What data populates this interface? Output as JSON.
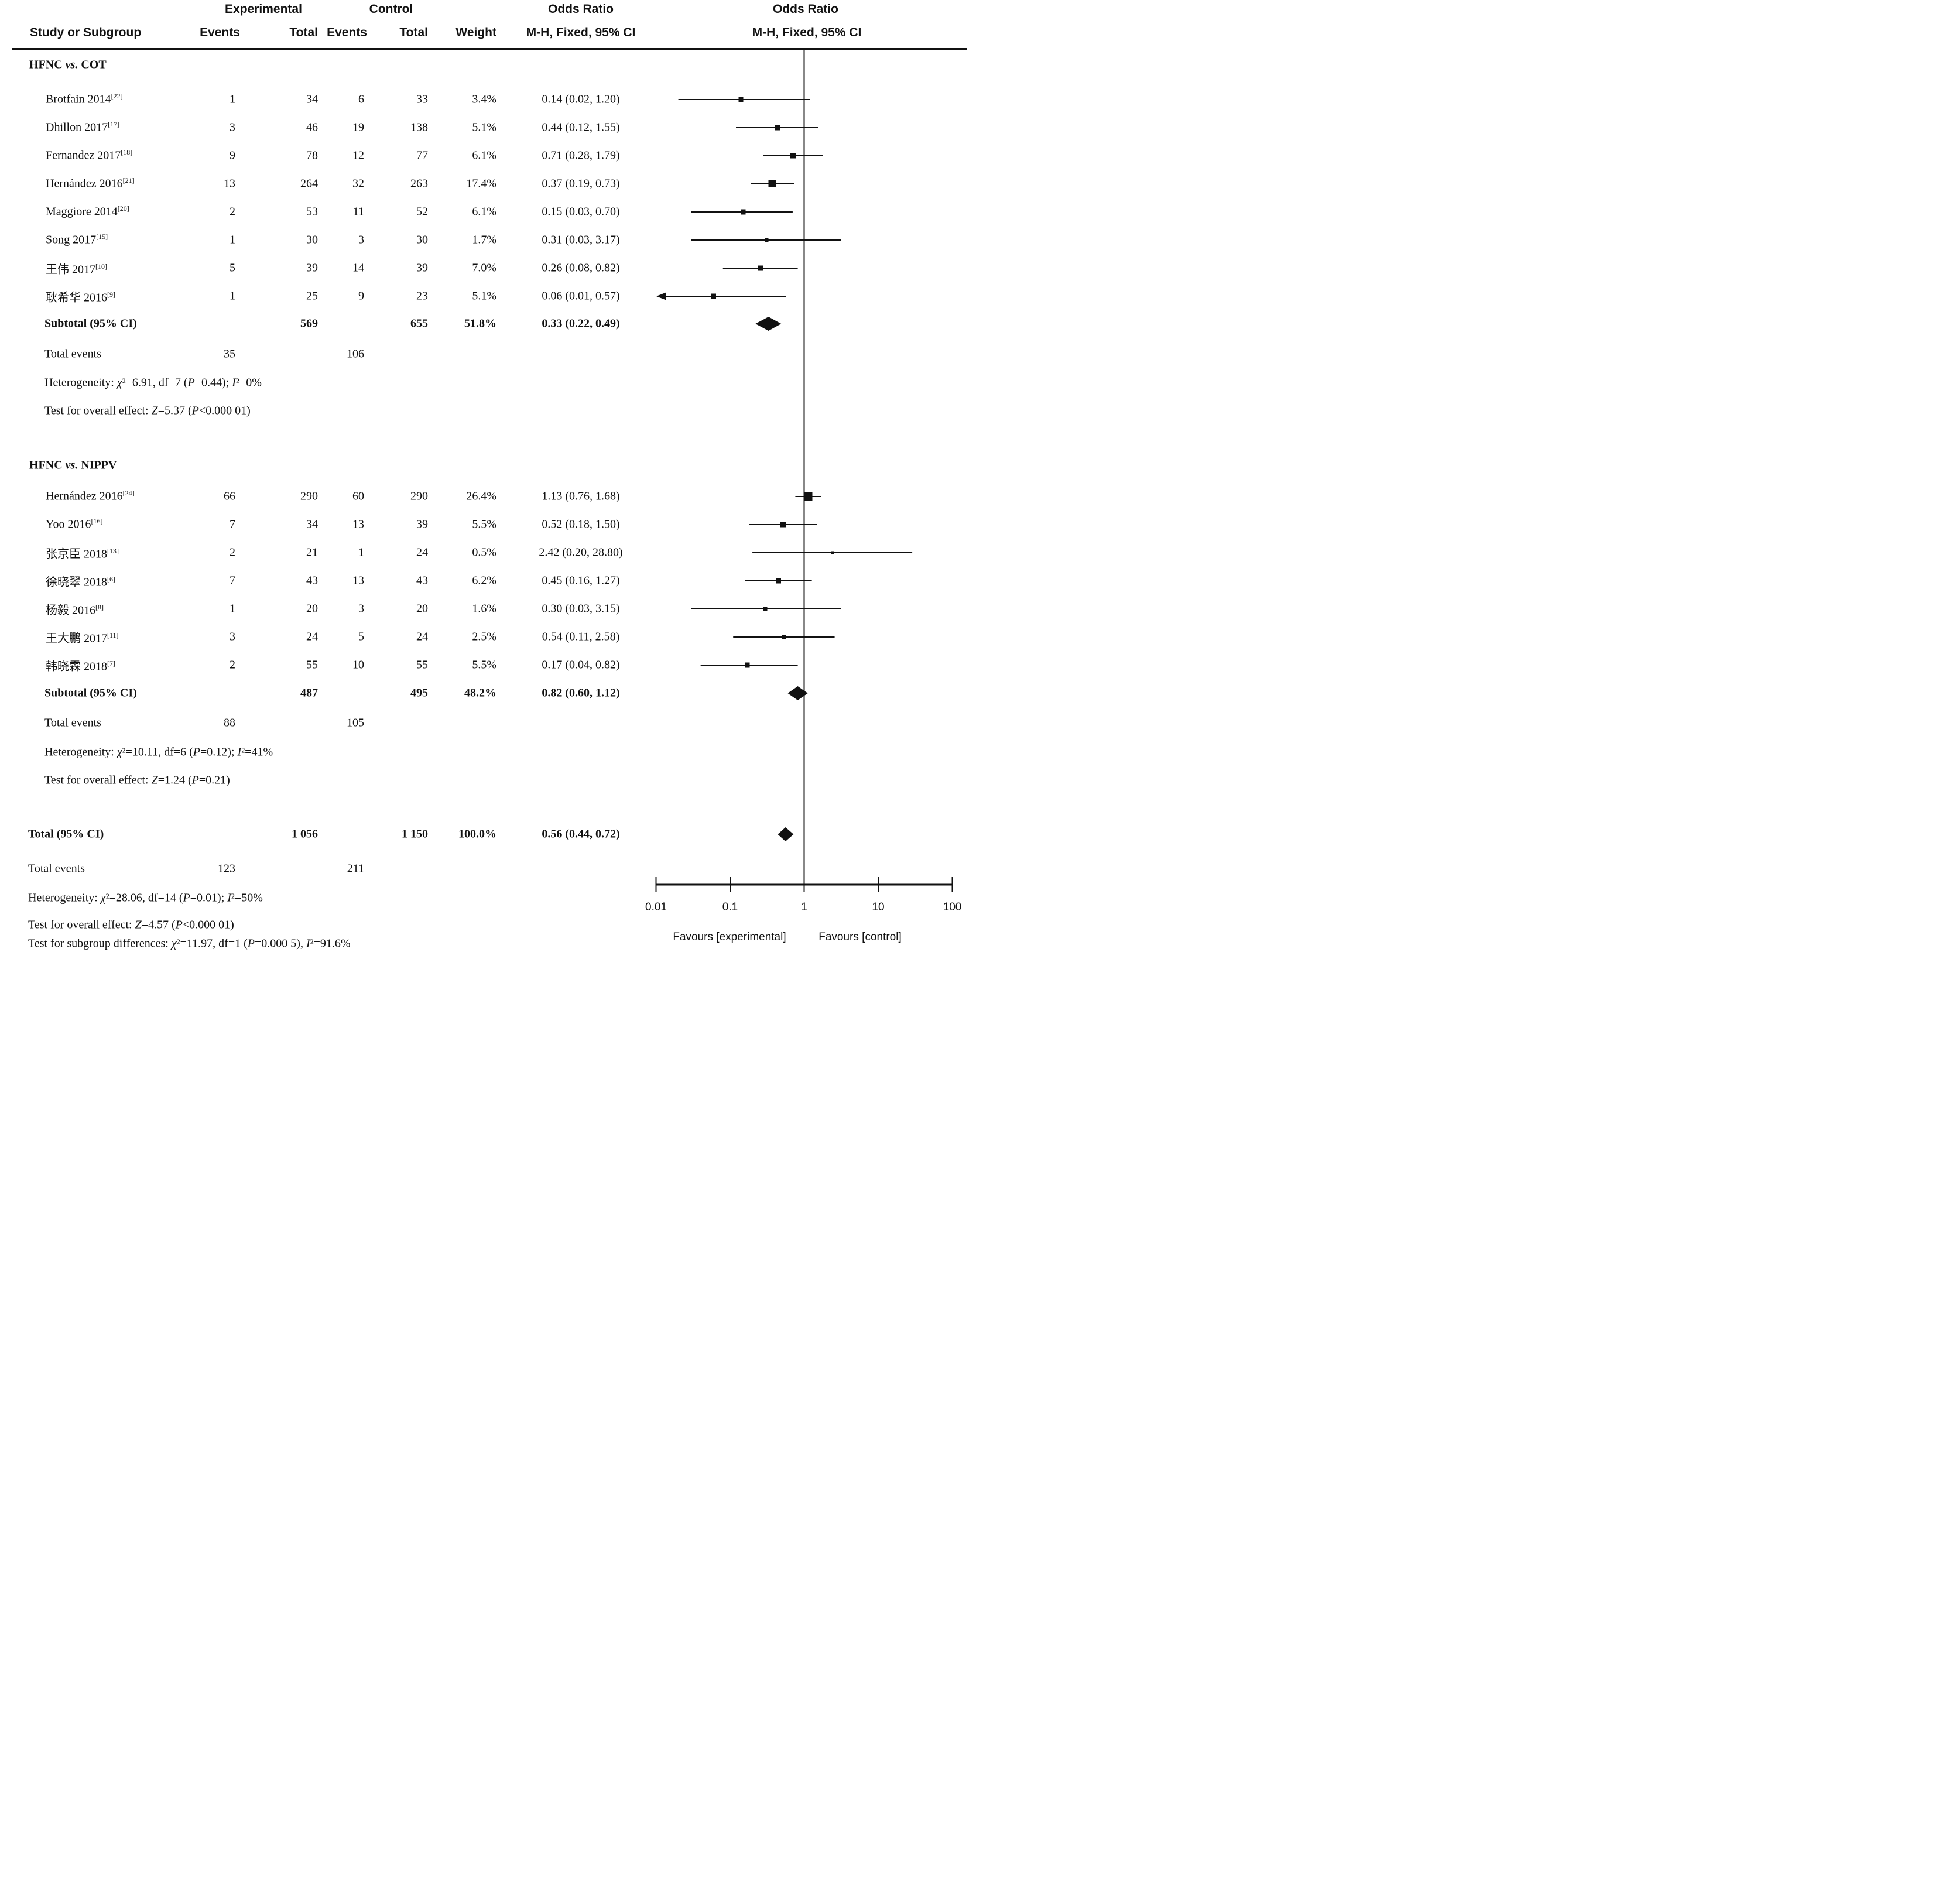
{
  "header": {
    "experimental": "Experimental",
    "control": "Control",
    "odds_ratio_text_col": "Odds Ratio",
    "odds_ratio_plot_col": "Odds Ratio",
    "study_or_subgroup": "Study or Subgroup",
    "events_1": "Events",
    "total_1": "Total",
    "events_2": "Events",
    "total_2": "Total",
    "weight": "Weight",
    "mh_text_col": "M-H, Fixed, 95% CI",
    "mh_plot_col": "M-H, Fixed, 95% CI"
  },
  "chart_data": {
    "type": "forest_plot",
    "effect_measure": "Odds Ratio, M-H, Fixed, 95% CI",
    "axis": {
      "scale": "log10",
      "min": 0.01,
      "max": 100,
      "tick_labels": [
        "0.01",
        "0.1",
        "1",
        "10",
        "100"
      ],
      "favours_left": "Favours [experimental]",
      "favours_right": "Favours [control]"
    },
    "colors": {
      "ink": "#111111",
      "marker": "#1a1a1a"
    },
    "groups": [
      {
        "name": "HFNC vs. COT",
        "studies": [
          {
            "label": "Brotfain 2014",
            "ref": "[22]",
            "exp_events": "1",
            "exp_total": "34",
            "ctl_events": "6",
            "ctl_total": "33",
            "weight": "3.4%",
            "weight_val": 3.4,
            "or_text": "0.14 (0.02, 1.20)",
            "or": 0.14,
            "low": 0.02,
            "high": 1.2
          },
          {
            "label": "Dhillon 2017",
            "ref": "[17]",
            "exp_events": "3",
            "exp_total": "46",
            "ctl_events": "19",
            "ctl_total": "138",
            "weight": "5.1%",
            "weight_val": 5.1,
            "or_text": "0.44 (0.12, 1.55)",
            "or": 0.44,
            "low": 0.12,
            "high": 1.55
          },
          {
            "label": "Fernandez 2017",
            "ref": "[18]",
            "exp_events": "9",
            "exp_total": "78",
            "ctl_events": "12",
            "ctl_total": "77",
            "weight": "6.1%",
            "weight_val": 6.1,
            "or_text": "0.71 (0.28, 1.79)",
            "or": 0.71,
            "low": 0.28,
            "high": 1.79
          },
          {
            "label": "Hernández 2016",
            "ref": "[21]",
            "exp_events": "13",
            "exp_total": "264",
            "ctl_events": "32",
            "ctl_total": "263",
            "weight": "17.4%",
            "weight_val": 17.4,
            "or_text": "0.37 (0.19, 0.73)",
            "or": 0.37,
            "low": 0.19,
            "high": 0.73
          },
          {
            "label": "Maggiore 2014",
            "ref": "[20]",
            "exp_events": "2",
            "exp_total": "53",
            "ctl_events": "11",
            "ctl_total": "52",
            "weight": "6.1%",
            "weight_val": 6.1,
            "or_text": "0.15 (0.03, 0.70)",
            "or": 0.15,
            "low": 0.03,
            "high": 0.7
          },
          {
            "label": "Song 2017",
            "ref": "[15]",
            "exp_events": "1",
            "exp_total": "30",
            "ctl_events": "3",
            "ctl_total": "30",
            "weight": "1.7%",
            "weight_val": 1.7,
            "or_text": "0.31 (0.03, 3.17)",
            "or": 0.31,
            "low": 0.03,
            "high": 3.17
          },
          {
            "label": "王伟 2017",
            "ref": "[10]",
            "exp_events": "5",
            "exp_total": "39",
            "ctl_events": "14",
            "ctl_total": "39",
            "weight": "7.0%",
            "weight_val": 7.0,
            "or_text": "0.26 (0.08, 0.82)",
            "or": 0.26,
            "low": 0.08,
            "high": 0.82
          },
          {
            "label": "耿希华 2016",
            "ref": "[9]",
            "exp_events": "1",
            "exp_total": "25",
            "ctl_events": "9",
            "ctl_total": "23",
            "weight": "5.1%",
            "weight_val": 5.1,
            "or_text": "0.06 (0.01, 0.57)",
            "or": 0.06,
            "low": 0.01,
            "high": 0.57
          }
        ],
        "subtotal": {
          "label": "Subtotal (95% CI)",
          "exp_total": "569",
          "ctl_total": "655",
          "weight": "51.8%",
          "or_text": "0.33 (0.22, 0.49)",
          "or": 0.33,
          "low": 0.22,
          "high": 0.49
        },
        "total_events": {
          "label": "Total events",
          "exp": "35",
          "ctl": "106"
        },
        "heterogeneity": "Heterogeneity: χ²=6.91, df=7 (P=0.44); I²=0%",
        "overall_effect": "Test for overall effect: Z=5.37 (P<0.000 01)"
      },
      {
        "name": "HFNC vs. NIPPV",
        "studies": [
          {
            "label": "Hernández 2016",
            "ref": "[24]",
            "exp_events": "66",
            "exp_total": "290",
            "ctl_events": "60",
            "ctl_total": "290",
            "weight": "26.4%",
            "weight_val": 26.4,
            "or_text": "1.13 (0.76, 1.68)",
            "or": 1.13,
            "low": 0.76,
            "high": 1.68
          },
          {
            "label": "Yoo 2016",
            "ref": "[16]",
            "exp_events": "7",
            "exp_total": "34",
            "ctl_events": "13",
            "ctl_total": "39",
            "weight": "5.5%",
            "weight_val": 5.5,
            "or_text": "0.52 (0.18, 1.50)",
            "or": 0.52,
            "low": 0.18,
            "high": 1.5
          },
          {
            "label": "张京臣 2018",
            "ref": "[13]",
            "exp_events": "2",
            "exp_total": "21",
            "ctl_events": "1",
            "ctl_total": "24",
            "weight": "0.5%",
            "weight_val": 0.5,
            "or_text": "2.42 (0.20, 28.80)",
            "or": 2.42,
            "low": 0.2,
            "high": 28.8
          },
          {
            "label": "徐晓翠 2018",
            "ref": "[6]",
            "exp_events": "7",
            "exp_total": "43",
            "ctl_events": "13",
            "ctl_total": "43",
            "weight": "6.2%",
            "weight_val": 6.2,
            "or_text": "0.45 (0.16, 1.27)",
            "or": 0.45,
            "low": 0.16,
            "high": 1.27
          },
          {
            "label": "杨毅 2016",
            "ref": "[8]",
            "exp_events": "1",
            "exp_total": "20",
            "ctl_events": "3",
            "ctl_total": "20",
            "weight": "1.6%",
            "weight_val": 1.6,
            "or_text": "0.30 (0.03, 3.15)",
            "or": 0.3,
            "low": 0.03,
            "high": 3.15
          },
          {
            "label": "王大鹏 2017",
            "ref": "[11]",
            "exp_events": "3",
            "exp_total": "24",
            "ctl_events": "5",
            "ctl_total": "24",
            "weight": "2.5%",
            "weight_val": 2.5,
            "or_text": "0.54 (0.11, 2.58)",
            "or": 0.54,
            "low": 0.11,
            "high": 2.58
          },
          {
            "label": "韩晓霖 2018",
            "ref": "[7]",
            "exp_events": "2",
            "exp_total": "55",
            "ctl_events": "10",
            "ctl_total": "55",
            "weight": "5.5%",
            "weight_val": 5.5,
            "or_text": "0.17 (0.04, 0.82)",
            "or": 0.17,
            "low": 0.04,
            "high": 0.82
          }
        ],
        "subtotal": {
          "label": "Subtotal (95% CI)",
          "exp_total": "487",
          "ctl_total": "495",
          "weight": "48.2%",
          "or_text": "0.82 (0.60, 1.12)",
          "or": 0.82,
          "low": 0.6,
          "high": 1.12
        },
        "total_events": {
          "label": "Total events",
          "exp": "88",
          "ctl": "105"
        },
        "heterogeneity": "Heterogeneity: χ²=10.11, df=6 (P=0.12); I²=41%",
        "overall_effect": "Test for overall effect: Z=1.24 (P=0.21)"
      }
    ],
    "overall": {
      "total_row": {
        "label": "Total (95% CI)",
        "exp_total": "1 056",
        "ctl_total": "1 150",
        "weight": "100.0%",
        "or_text": "0.56 (0.44, 0.72)",
        "or": 0.56,
        "low": 0.44,
        "high": 0.72
      },
      "total_events": {
        "label": "Total events",
        "exp": "123",
        "ctl": "211"
      },
      "heterogeneity": "Heterogeneity: χ²=28.06, df=14 (P=0.01); I²=50%",
      "overall_effect": "Test for overall effect: Z=4.57 (P<0.000 01)",
      "subgroup_diff": "Test for subgroup differences: χ²=11.97, df=1 (P=0.000 5), I²=91.6%"
    }
  }
}
